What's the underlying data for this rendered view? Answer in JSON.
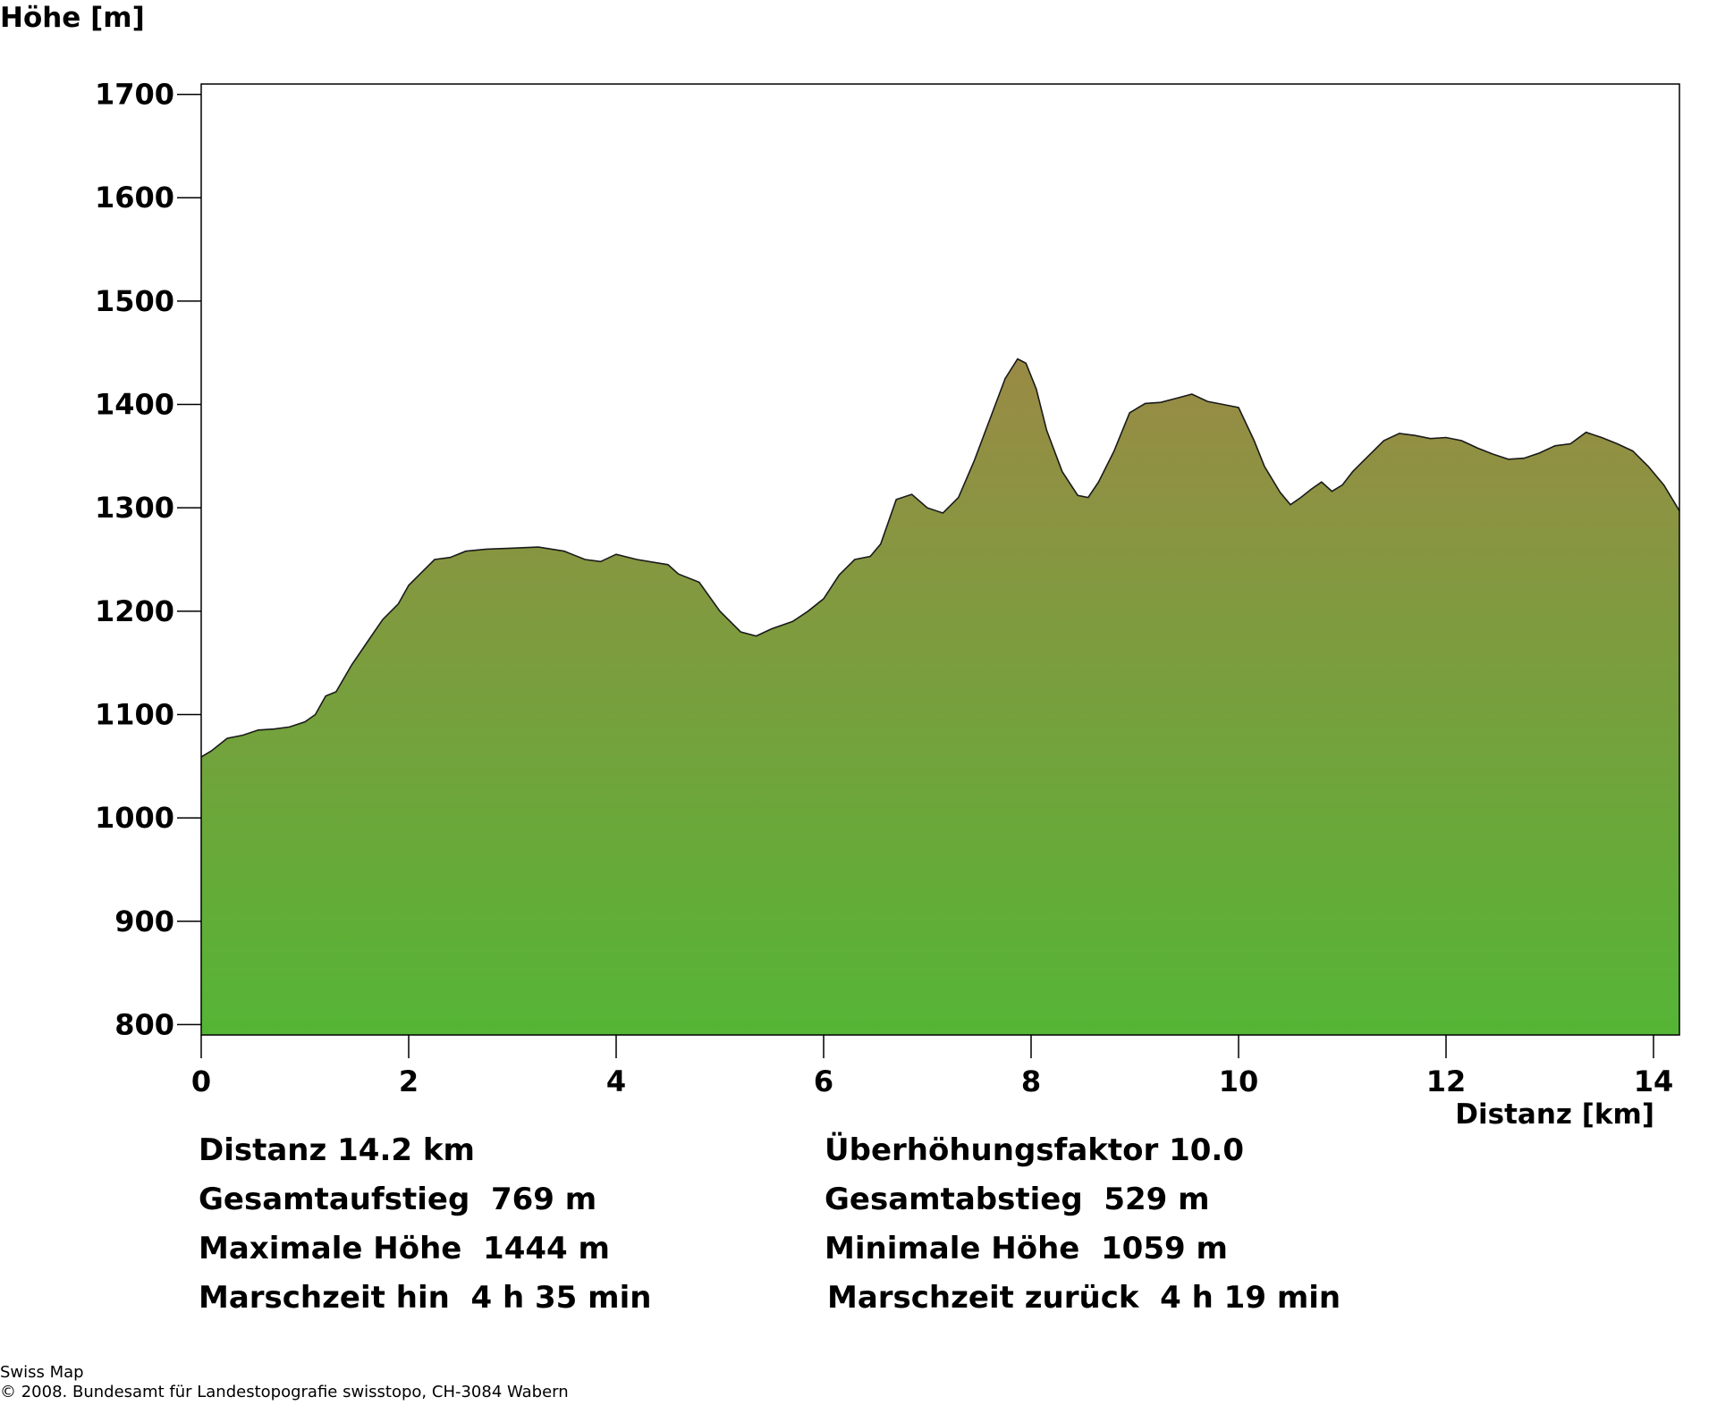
{
  "chart_data": {
    "type": "area",
    "ylabel": "Höhe [m]",
    "xlabel": "Distanz [km]",
    "xlim": [
      0,
      14.25
    ],
    "ylim": [
      790,
      1710
    ],
    "xticks": [
      0,
      2,
      4,
      6,
      8,
      10,
      12,
      14
    ],
    "yticks": [
      800,
      900,
      1000,
      1100,
      1200,
      1300,
      1400,
      1500,
      1600,
      1700
    ],
    "grid": false,
    "fill_top_color": "#9a8a45",
    "fill_bottom_color": "#55b535",
    "line_color": "#1a1a1a",
    "x": [
      0,
      0.1,
      0.25,
      0.4,
      0.55,
      0.7,
      0.85,
      1.0,
      1.1,
      1.2,
      1.3,
      1.45,
      1.6,
      1.75,
      1.9,
      2.0,
      2.1,
      2.25,
      2.4,
      2.55,
      2.75,
      3.0,
      3.25,
      3.5,
      3.7,
      3.85,
      4.0,
      4.2,
      4.5,
      4.6,
      4.8,
      5.0,
      5.2,
      5.35,
      5.5,
      5.7,
      5.85,
      6.0,
      6.15,
      6.3,
      6.45,
      6.55,
      6.7,
      6.85,
      7.0,
      7.15,
      7.3,
      7.45,
      7.6,
      7.75,
      7.87,
      7.95,
      8.05,
      8.15,
      8.3,
      8.45,
      8.55,
      8.65,
      8.8,
      8.95,
      9.1,
      9.25,
      9.4,
      9.55,
      9.7,
      9.85,
      10.0,
      10.15,
      10.25,
      10.4,
      10.5,
      10.6,
      10.7,
      10.8,
      10.9,
      11.0,
      11.1,
      11.25,
      11.4,
      11.55,
      11.7,
      11.85,
      12.0,
      12.15,
      12.3,
      12.45,
      12.6,
      12.75,
      12.9,
      13.05,
      13.2,
      13.35,
      13.5,
      13.65,
      13.8,
      13.95,
      14.1,
      14.25
    ],
    "y": [
      1059,
      1065,
      1077,
      1080,
      1085,
      1086,
      1088,
      1093,
      1100,
      1118,
      1122,
      1148,
      1170,
      1192,
      1207,
      1225,
      1235,
      1250,
      1252,
      1258,
      1260,
      1261,
      1262,
      1258,
      1250,
      1248,
      1255,
      1250,
      1245,
      1236,
      1228,
      1200,
      1180,
      1176,
      1183,
      1190,
      1200,
      1212,
      1235,
      1250,
      1253,
      1265,
      1308,
      1313,
      1300,
      1295,
      1310,
      1345,
      1385,
      1425,
      1444,
      1440,
      1415,
      1375,
      1335,
      1312,
      1310,
      1325,
      1355,
      1392,
      1401,
      1402,
      1406,
      1410,
      1403,
      1400,
      1397,
      1365,
      1340,
      1315,
      1303,
      1310,
      1318,
      1325,
      1316,
      1322,
      1335,
      1350,
      1365,
      1372,
      1370,
      1367,
      1368,
      1365,
      1358,
      1352,
      1347,
      1348,
      1353,
      1360,
      1362,
      1373,
      1368,
      1362,
      1355,
      1340,
      1322,
      1297
    ]
  },
  "stats": {
    "distanz": "Distanz 14.2 km",
    "ueberhoehung": "Überhöhungsfaktor 10.0",
    "aufstieg": "Gesamtaufstieg  769 m",
    "abstieg": "Gesamtabstieg  529 m",
    "max_hoehe": "Maximale Höhe  1444 m",
    "min_hoehe": "Minimale Höhe  1059 m",
    "marsch_hin": "Marschzeit hin  4 h 35 min",
    "marsch_zurueck": "Marschzeit zurück  4 h 19 min"
  },
  "credits": {
    "line1": "Swiss Map",
    "line2": "© 2008. Bundesamt für Landestopografie swisstopo, CH-3084 Wabern"
  }
}
